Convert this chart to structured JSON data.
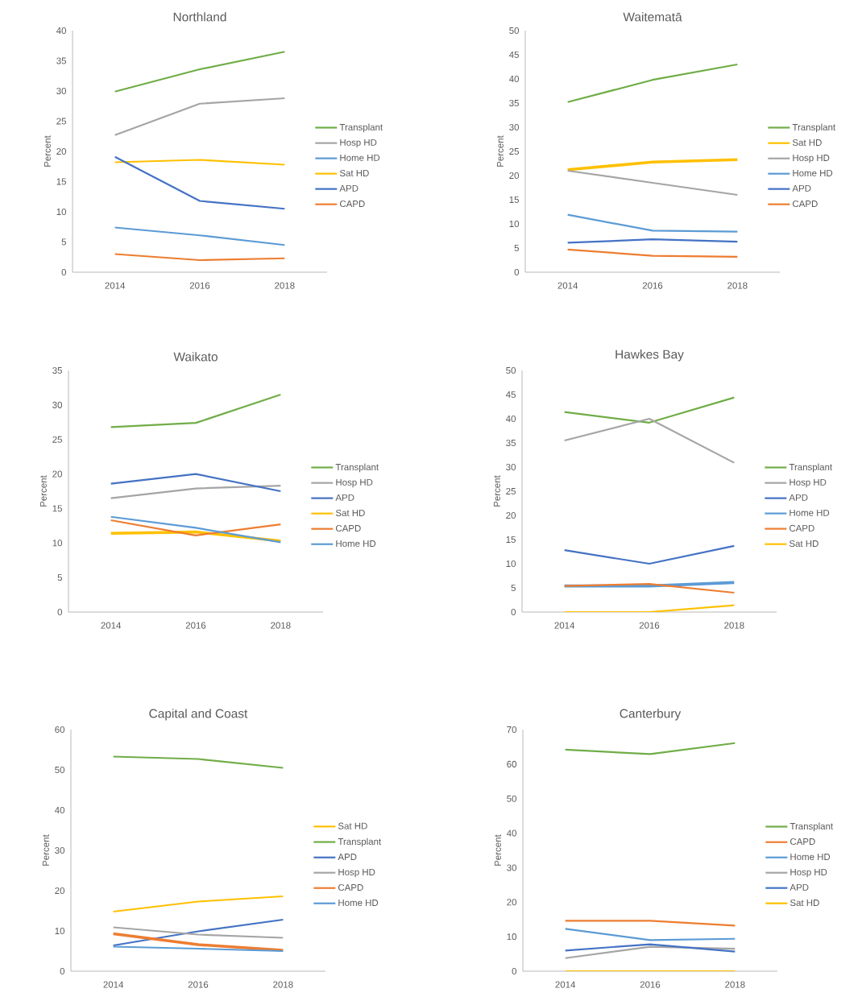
{
  "chart_data": [
    {
      "type": "line",
      "title": "Northland",
      "ylabel": "Percent",
      "categories": [
        "2014",
        "2016",
        "2018"
      ],
      "ylim": [
        0,
        40
      ],
      "yticks": [
        0,
        5,
        10,
        15,
        20,
        25,
        30,
        35,
        40
      ],
      "legend": "right",
      "series": [
        {
          "name": "Transplant",
          "color": "#70ad47",
          "values": [
            29.9,
            33.6,
            36.5
          ]
        },
        {
          "name": "Hosp HD",
          "color": "#a5a5a5",
          "values": [
            22.7,
            27.9,
            28.8
          ]
        },
        {
          "name": "Home HD",
          "color": "#5b9bd5",
          "values": [
            7.4,
            6.1,
            4.5
          ]
        },
        {
          "name": "Sat HD",
          "color": "#ffc000",
          "values": [
            18.2,
            18.6,
            17.8
          ]
        },
        {
          "name": "APD",
          "color": "#4472c4",
          "values": [
            19.1,
            11.8,
            10.5
          ]
        },
        {
          "name": "CAPD",
          "color": "#ed7d31",
          "values": [
            3.0,
            2.0,
            2.3
          ]
        }
      ]
    },
    {
      "type": "line",
      "title": "Waitematā",
      "ylabel": "Percent",
      "categories": [
        "2014",
        "2016",
        "2018"
      ],
      "ylim": [
        0,
        50
      ],
      "yticks": [
        0,
        5,
        10,
        15,
        20,
        25,
        30,
        35,
        40,
        45,
        50
      ],
      "legend": "right",
      "series": [
        {
          "name": "Transplant",
          "color": "#70ad47",
          "values": [
            35.2,
            39.8,
            43.0
          ]
        },
        {
          "name": "Sat HD",
          "color": "#ffc000",
          "values": [
            21.2,
            22.8,
            23.3
          ]
        },
        {
          "name": "Hosp HD",
          "color": "#a5a5a5",
          "values": [
            21.0,
            18.5,
            16.0
          ]
        },
        {
          "name": "Home HD",
          "color": "#5b9bd5",
          "values": [
            11.9,
            8.6,
            8.4
          ]
        },
        {
          "name": "APD",
          "color": "#4472c4",
          "values": [
            6.1,
            6.8,
            6.3
          ]
        },
        {
          "name": "CAPD",
          "color": "#ed7d31",
          "values": [
            4.7,
            3.4,
            3.2
          ]
        }
      ]
    },
    {
      "type": "line",
      "title": "Waikato",
      "ylabel": "Percent",
      "categories": [
        "2014",
        "2016",
        "2018"
      ],
      "ylim": [
        0,
        35
      ],
      "yticks": [
        0,
        5,
        10,
        15,
        20,
        25,
        30,
        35
      ],
      "legend": "right",
      "series": [
        {
          "name": "Transplant",
          "color": "#70ad47",
          "values": [
            26.8,
            27.4,
            31.5
          ]
        },
        {
          "name": "Hosp HD",
          "color": "#a5a5a5",
          "values": [
            16.5,
            17.9,
            18.3
          ]
        },
        {
          "name": "APD",
          "color": "#4472c4",
          "values": [
            18.6,
            20.0,
            17.5
          ]
        },
        {
          "name": "Sat HD",
          "color": "#ffc000",
          "values": [
            11.4,
            11.6,
            10.3
          ]
        },
        {
          "name": "CAPD",
          "color": "#ed7d31",
          "values": [
            13.3,
            11.1,
            12.7
          ]
        },
        {
          "name": "Home HD",
          "color": "#5b9bd5",
          "values": [
            13.8,
            12.2,
            10.1
          ]
        }
      ]
    },
    {
      "type": "line",
      "title": "Hawkes Bay",
      "ylabel": "Percent",
      "categories": [
        "2014",
        "2016",
        "2018"
      ],
      "ylim": [
        0,
        50
      ],
      "yticks": [
        0,
        5,
        10,
        15,
        20,
        25,
        30,
        35,
        40,
        45,
        50
      ],
      "legend": "right",
      "series": [
        {
          "name": "Transplant",
          "color": "#70ad47",
          "values": [
            41.4,
            39.2,
            44.4
          ]
        },
        {
          "name": "Hosp HD",
          "color": "#a5a5a5",
          "values": [
            35.5,
            40.0,
            30.9
          ]
        },
        {
          "name": "APD",
          "color": "#4472c4",
          "values": [
            12.8,
            10.0,
            13.7
          ]
        },
        {
          "name": "Home HD",
          "color": "#5b9bd5",
          "values": [
            5.4,
            5.4,
            6.1
          ]
        },
        {
          "name": "CAPD",
          "color": "#ed7d31",
          "values": [
            5.4,
            5.8,
            4.0
          ]
        },
        {
          "name": "Sat HD",
          "color": "#ffc000",
          "values": [
            0,
            0,
            1.4
          ]
        }
      ]
    },
    {
      "type": "line",
      "title": "Capital and Coast",
      "ylabel": "Percent",
      "categories": [
        "2014",
        "2016",
        "2018"
      ],
      "ylim": [
        0,
        60
      ],
      "yticks": [
        0,
        10,
        20,
        30,
        40,
        50,
        60
      ],
      "legend": "right",
      "series": [
        {
          "name": "Sat HD",
          "color": "#ffc000",
          "values": [
            14.8,
            17.3,
            18.6
          ]
        },
        {
          "name": "Transplant",
          "color": "#70ad47",
          "values": [
            53.3,
            52.7,
            50.5
          ]
        },
        {
          "name": "APD",
          "color": "#4472c4",
          "values": [
            6.4,
            9.9,
            12.8
          ]
        },
        {
          "name": "Hosp HD",
          "color": "#a5a5a5",
          "values": [
            10.9,
            9.1,
            8.3
          ]
        },
        {
          "name": "CAPD",
          "color": "#ed7d31",
          "values": [
            9.3,
            6.6,
            5.2
          ]
        },
        {
          "name": "Home HD",
          "color": "#5b9bd5",
          "values": [
            6.1,
            5.6,
            5.0
          ]
        }
      ]
    },
    {
      "type": "line",
      "title": "Canterbury",
      "ylabel": "Percent",
      "categories": [
        "2014",
        "2016",
        "2018"
      ],
      "ylim": [
        0,
        70
      ],
      "yticks": [
        0,
        10,
        20,
        30,
        40,
        50,
        60,
        70
      ],
      "legend": "right",
      "series": [
        {
          "name": "Transplant",
          "color": "#70ad47",
          "values": [
            64.2,
            62.9,
            66.1
          ]
        },
        {
          "name": "CAPD",
          "color": "#ed7d31",
          "values": [
            14.6,
            14.6,
            13.2
          ]
        },
        {
          "name": "Home HD",
          "color": "#5b9bd5",
          "values": [
            12.3,
            9.0,
            9.4
          ]
        },
        {
          "name": "Hosp HD",
          "color": "#a5a5a5",
          "values": [
            3.8,
            7.1,
            6.5
          ]
        },
        {
          "name": "APD",
          "color": "#4472c4",
          "values": [
            6.0,
            7.8,
            5.7
          ]
        },
        {
          "name": "Sat HD",
          "color": "#ffc000",
          "values": [
            0,
            0,
            0
          ]
        }
      ]
    }
  ]
}
